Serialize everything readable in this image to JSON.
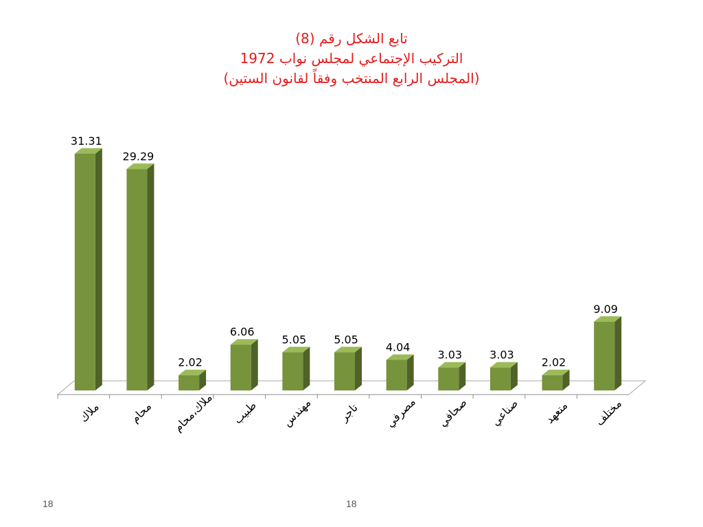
{
  "slide": {
    "title_lines": [
      "تابع الشكل رقم (8)",
      "التركيب الإجتماعي لمجلس نواب 1972",
      "(المجلس الرابع المنتخب وفقاً لقانون الستين)"
    ],
    "footer_left": "18",
    "footer_center": "18"
  },
  "colors": {
    "title": "#e41b1b",
    "bar_front": "#77933c",
    "bar_side": "#4f6228",
    "bar_top": "#9bbb59"
  },
  "chart_data": {
    "type": "bar",
    "categories": [
      "ملاك",
      "محام",
      "ملاك،محام",
      "طبيب",
      "مهندس",
      "تاجر",
      "مصرفي",
      "صحافي",
      "صناعي",
      "متعهد",
      "مختلف"
    ],
    "values": [
      31.31,
      29.29,
      2.02,
      6.06,
      5.05,
      5.05,
      4.04,
      3.03,
      3.03,
      2.02,
      9.09
    ],
    "data_labels": [
      "31.31",
      "29.29",
      "2.02",
      "6.06",
      "5.05",
      "5.05",
      "4.04",
      "3.03",
      "3.03",
      "2.02",
      "9.09"
    ],
    "ylim": [
      0,
      32
    ],
    "grid": false,
    "legend": "none",
    "style": "3d-column"
  }
}
